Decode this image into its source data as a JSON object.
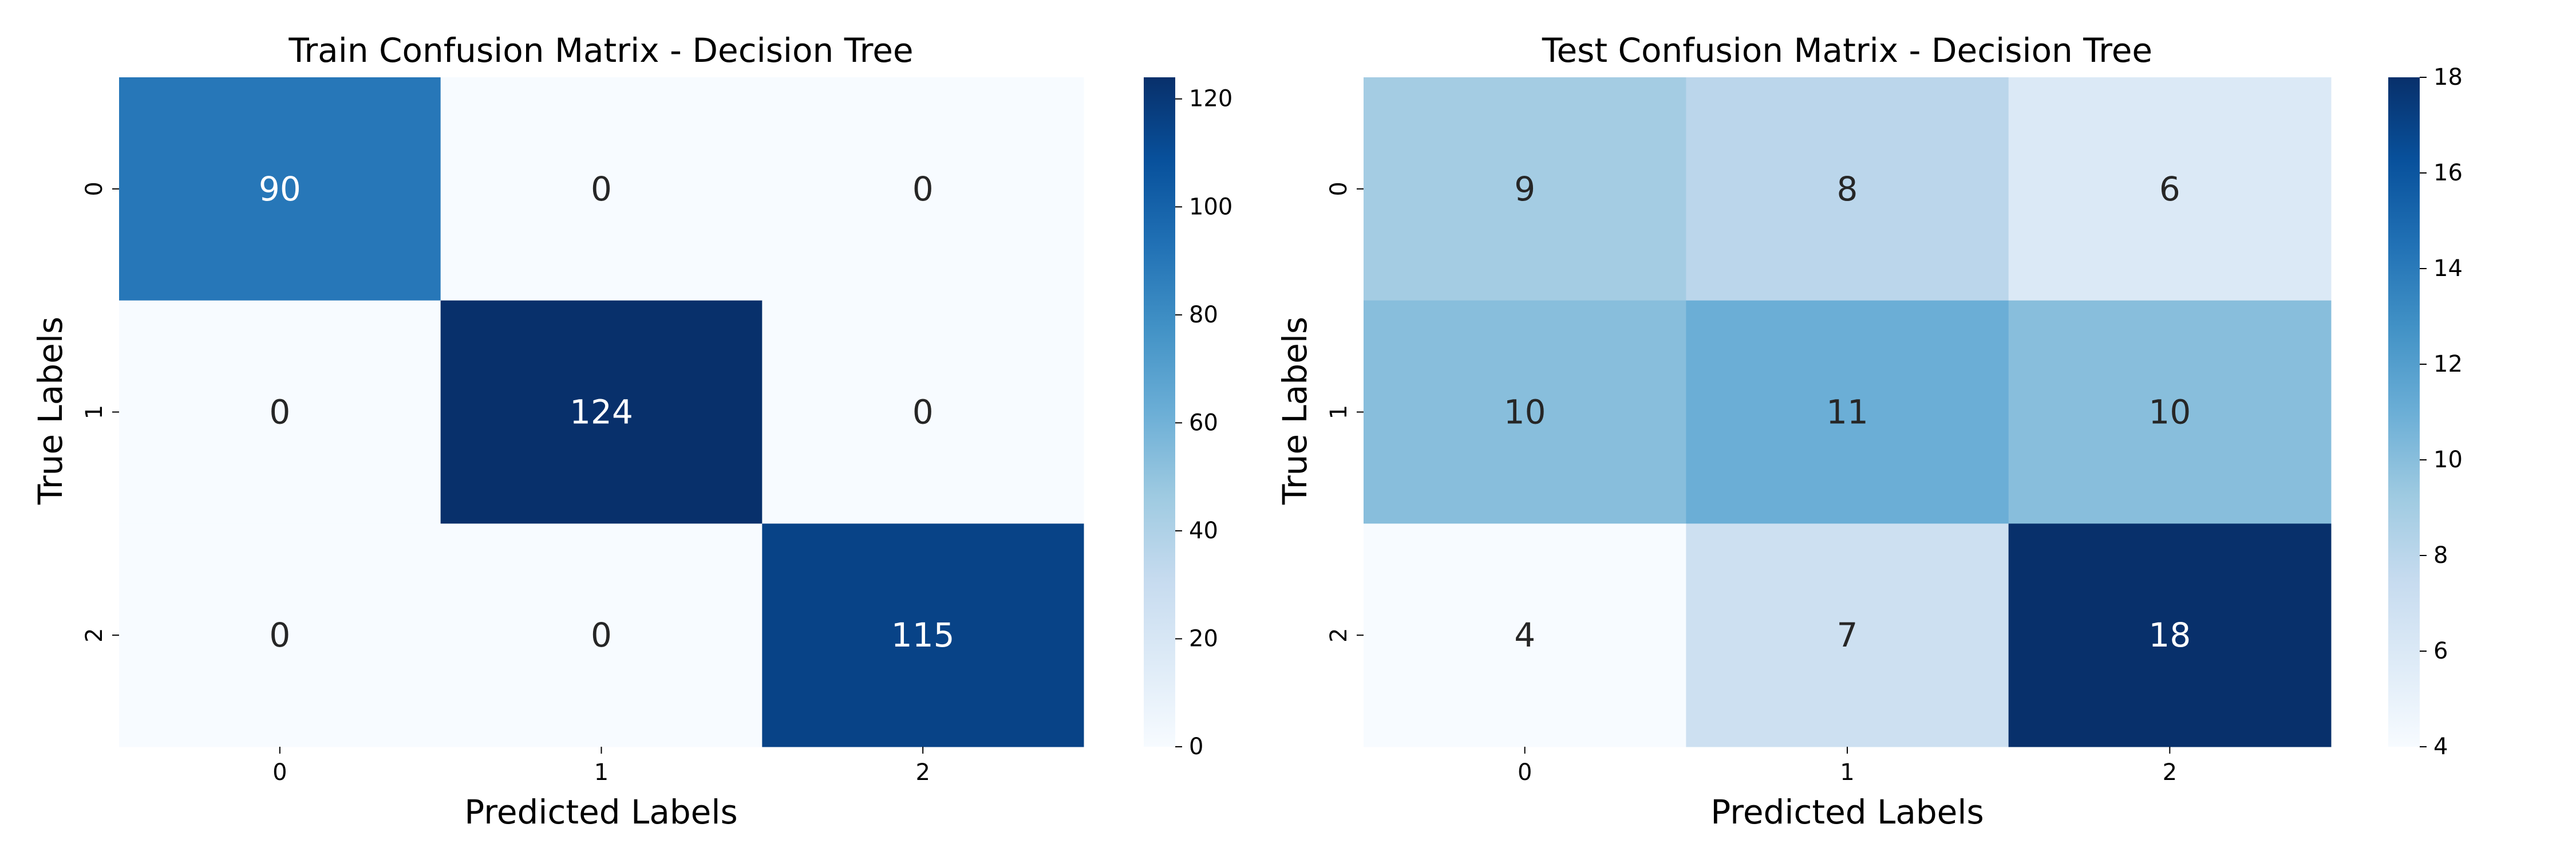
{
  "chart_data": [
    {
      "type": "heatmap",
      "title": "Train Confusion Matrix - Decision Tree",
      "xlabel": "Predicted Labels",
      "ylabel": "True Labels",
      "x_categories": [
        "0",
        "1",
        "2"
      ],
      "y_categories": [
        "0",
        "1",
        "2"
      ],
      "values": [
        [
          90,
          0,
          0
        ],
        [
          0,
          124,
          0
        ],
        [
          0,
          0,
          115
        ]
      ],
      "colorscale": "Blues",
      "colorbar": {
        "vmin": 0,
        "vmax": 124,
        "ticks": [
          0,
          20,
          40,
          60,
          80,
          100,
          120
        ]
      }
    },
    {
      "type": "heatmap",
      "title": "Test Confusion Matrix - Decision Tree",
      "xlabel": "Predicted Labels",
      "ylabel": "True Labels",
      "x_categories": [
        "0",
        "1",
        "2"
      ],
      "y_categories": [
        "0",
        "1",
        "2"
      ],
      "values": [
        [
          9,
          8,
          6
        ],
        [
          10,
          11,
          10
        ],
        [
          4,
          7,
          18
        ]
      ],
      "colorscale": "Blues",
      "colorbar": {
        "vmin": 4,
        "vmax": 18,
        "ticks": [
          4,
          6,
          8,
          10,
          12,
          14,
          16,
          18
        ]
      }
    }
  ]
}
